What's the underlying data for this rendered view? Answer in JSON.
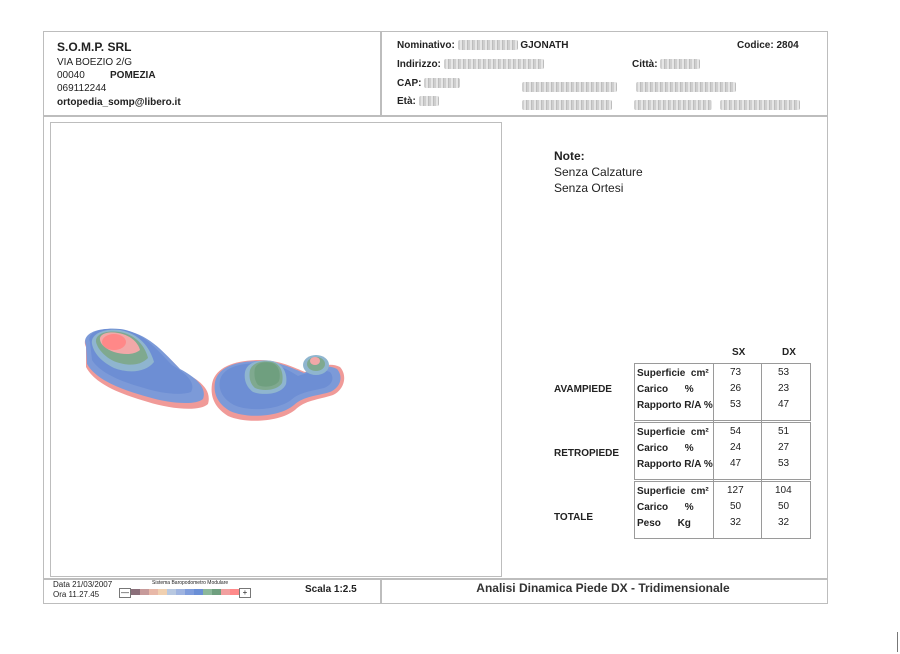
{
  "company": {
    "name": "S.O.M.P. SRL",
    "street": "VIA BOEZIO  2/G",
    "zip": "00040",
    "city": "POMEZIA",
    "phone": "069112244",
    "email": "ortopedia_somp@libero.it"
  },
  "patient": {
    "nominativo_label": "Nominativo:",
    "nominativo_visible": "GJONATH",
    "indirizzo_label": "Indirizzo:",
    "citta_label": "Città:",
    "cap_label": "CAP:",
    "eta_label": "Età:",
    "codice_label": "Codice:",
    "codice_value": "2804"
  },
  "notes": {
    "title": "Note:",
    "line1": "Senza Calzature",
    "line2": "Senza Ortesi"
  },
  "table": {
    "col_sx": "SX",
    "col_dx": "DX",
    "groups": [
      {
        "name": "AVAMPIEDE",
        "rows": [
          {
            "label": "Superficie  cm²",
            "sx": "73",
            "dx": "53"
          },
          {
            "label": "Carico      %",
            "sx": "26",
            "dx": "23"
          },
          {
            "label": "Rapporto R/A %",
            "sx": "53",
            "dx": "47"
          }
        ]
      },
      {
        "name": "RETROPIEDE",
        "rows": [
          {
            "label": "Superficie  cm²",
            "sx": "54",
            "dx": "51"
          },
          {
            "label": "Carico      %",
            "sx": "24",
            "dx": "27"
          },
          {
            "label": "Rapporto R/A %",
            "sx": "47",
            "dx": "53"
          }
        ]
      },
      {
        "name": "TOTALE",
        "rows": [
          {
            "label": "Superficie  cm²",
            "sx": "127",
            "dx": "104"
          },
          {
            "label": "Carico      %",
            "sx": "50",
            "dx": "50"
          },
          {
            "label": "Peso      Kg",
            "sx": "32",
            "dx": "32"
          }
        ]
      }
    ]
  },
  "footer": {
    "date": "Data 21/03/2007",
    "time": "Ora 11.27.45",
    "system": "Sistema Baropodometro Modulare",
    "minus": "—",
    "plus": "+",
    "scale": "Scala 1:2.5",
    "title": "Analisi Dinamica Piede DX - Tridimensionale"
  },
  "colors": {
    "pressure_scale": [
      "#8b6f7a",
      "#c79a9a",
      "#e8b8a8",
      "#f0d0b0",
      "#b8c8e0",
      "#9fb4e0",
      "#7f9ddc",
      "#6a8fd6",
      "#8cb89a",
      "#6f9f7f",
      "#f2a0a0",
      "#ff8a8a"
    ]
  }
}
